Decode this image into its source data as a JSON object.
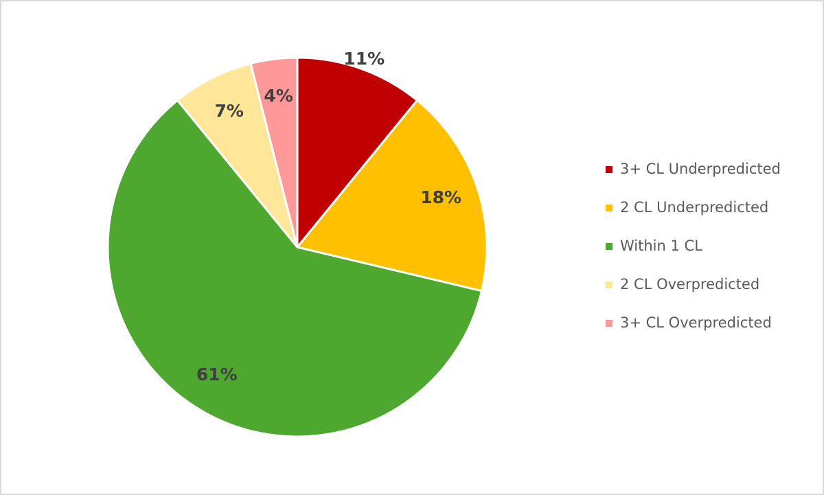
{
  "chart_data": {
    "type": "pie",
    "categories": [
      "3+ CL Underpredicted",
      "2 CL Underpredicted",
      "Within 1 CL",
      "2 CL Overpredicted",
      "3+ CL Overpredicted"
    ],
    "values": [
      11,
      18,
      61,
      7,
      4
    ],
    "value_labels": [
      "11%",
      "18%",
      "61%",
      "7%",
      "4%"
    ],
    "colors": [
      "#c00000",
      "#ffc000",
      "#4ea72e",
      "#ffe699",
      "#ff9999"
    ],
    "legend": "right"
  }
}
